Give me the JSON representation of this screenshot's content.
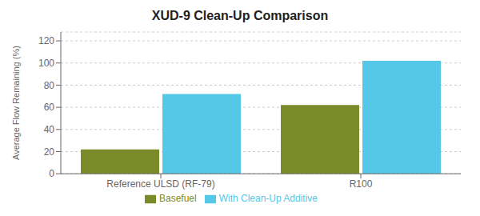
{
  "chart_data": {
    "type": "bar",
    "title": "XUD-9 Clean-Up Comparison",
    "ylabel": "Average Flow Remaining (%)",
    "categories": [
      "Reference ULSD (RF-79)",
      "R100"
    ],
    "series": [
      {
        "name": "Basefuel",
        "color": "#7a8b2a",
        "values": [
          22,
          62
        ]
      },
      {
        "name": "With Clean-Up Additive",
        "color": "#55c8e8",
        "values": [
          72,
          102
        ]
      }
    ],
    "ylim": [
      0,
      128
    ],
    "yticks": [
      0,
      20,
      40,
      60,
      80,
      100,
      120
    ],
    "grid": true,
    "legend": "bottom"
  }
}
